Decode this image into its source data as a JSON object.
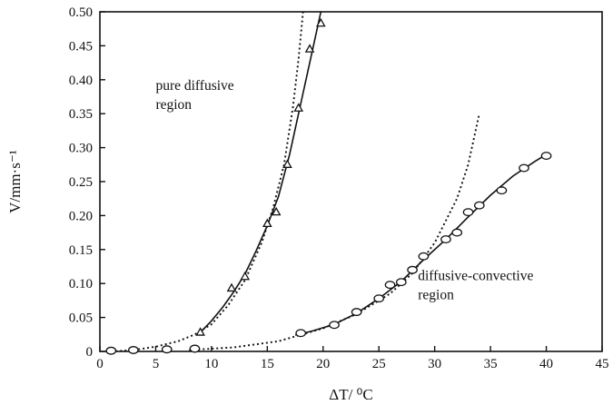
{
  "chart_data": {
    "type": "scatter",
    "title": "",
    "xlabel": "ΔT/ ⁰C",
    "ylabel": "V/mm·s⁻¹",
    "xlim": [
      0,
      45
    ],
    "ylim": [
      0,
      0.5
    ],
    "xticks": [
      "0",
      "5",
      "10",
      "15",
      "20",
      "25",
      "30",
      "35",
      "40",
      "45"
    ],
    "yticks": [
      "0",
      "0.05",
      "0.10",
      "0.15",
      "0.20",
      "0.25",
      "0.30",
      "0.35",
      "0.40",
      "0.45",
      "0.50"
    ],
    "grid": false,
    "legend": "none",
    "annotations": [
      {
        "id": "diffusive",
        "lines": [
          "pure diffusive",
          "region"
        ],
        "x": 5.0,
        "y": 0.385
      },
      {
        "id": "convective",
        "lines": [
          "diffusive-convective",
          "region"
        ],
        "x": 28.5,
        "y": 0.105
      }
    ],
    "series": [
      {
        "marker": "triangle",
        "points": [
          {
            "x": 9.0,
            "y": 0.028
          },
          {
            "x": 11.8,
            "y": 0.093
          },
          {
            "x": 13.0,
            "y": 0.11
          },
          {
            "x": 15.0,
            "y": 0.188
          },
          {
            "x": 15.8,
            "y": 0.205
          },
          {
            "x": 16.8,
            "y": 0.275
          },
          {
            "x": 17.8,
            "y": 0.358
          },
          {
            "x": 18.8,
            "y": 0.445
          },
          {
            "x": 19.8,
            "y": 0.483
          }
        ],
        "fit_solid": [
          [
            9.0,
            0.028
          ],
          [
            10.0,
            0.045
          ],
          [
            11.0,
            0.065
          ],
          [
            12.0,
            0.088
          ],
          [
            13.0,
            0.114
          ],
          [
            14.0,
            0.148
          ],
          [
            15.0,
            0.185
          ],
          [
            16.0,
            0.228
          ],
          [
            17.0,
            0.29
          ],
          [
            18.0,
            0.365
          ],
          [
            19.0,
            0.44
          ],
          [
            19.8,
            0.5
          ]
        ],
        "fit_dotted": [
          [
            1.0,
            0.0
          ],
          [
            3.0,
            0.002
          ],
          [
            5.0,
            0.007
          ],
          [
            7.0,
            0.015
          ],
          [
            8.5,
            0.025
          ],
          [
            10.0,
            0.04
          ],
          [
            11.5,
            0.068
          ],
          [
            13.0,
            0.105
          ],
          [
            14.5,
            0.16
          ],
          [
            15.5,
            0.21
          ],
          [
            16.5,
            0.275
          ],
          [
            17.3,
            0.36
          ],
          [
            17.8,
            0.43
          ],
          [
            18.2,
            0.5
          ]
        ]
      },
      {
        "marker": "circle",
        "points": [
          {
            "x": 1.0,
            "y": 0.001
          },
          {
            "x": 3.0,
            "y": 0.002
          },
          {
            "x": 6.0,
            "y": 0.003
          },
          {
            "x": 8.5,
            "y": 0.004
          },
          {
            "x": 18.0,
            "y": 0.027
          },
          {
            "x": 21.0,
            "y": 0.039
          },
          {
            "x": 23.0,
            "y": 0.058
          },
          {
            "x": 25.0,
            "y": 0.078
          },
          {
            "x": 26.0,
            "y": 0.098
          },
          {
            "x": 27.0,
            "y": 0.102
          },
          {
            "x": 28.0,
            "y": 0.12
          },
          {
            "x": 29.0,
            "y": 0.14
          },
          {
            "x": 31.0,
            "y": 0.165
          },
          {
            "x": 32.0,
            "y": 0.175
          },
          {
            "x": 33.0,
            "y": 0.205
          },
          {
            "x": 34.0,
            "y": 0.215
          },
          {
            "x": 36.0,
            "y": 0.237
          },
          {
            "x": 38.0,
            "y": 0.27
          },
          {
            "x": 40.0,
            "y": 0.288
          }
        ],
        "fit_solid": [
          [
            17.5,
            0.024
          ],
          [
            19.0,
            0.03
          ],
          [
            21.0,
            0.04
          ],
          [
            23.0,
            0.056
          ],
          [
            25.0,
            0.078
          ],
          [
            27.0,
            0.103
          ],
          [
            29.0,
            0.135
          ],
          [
            31.0,
            0.165
          ],
          [
            33.0,
            0.198
          ],
          [
            35.0,
            0.23
          ],
          [
            37.0,
            0.258
          ],
          [
            39.0,
            0.28
          ],
          [
            40.0,
            0.29
          ]
        ],
        "fit_dotted": [
          [
            8.0,
            0.002
          ],
          [
            12.0,
            0.006
          ],
          [
            16.0,
            0.015
          ],
          [
            20.0,
            0.034
          ],
          [
            23.0,
            0.055
          ],
          [
            26.0,
            0.085
          ],
          [
            28.0,
            0.115
          ],
          [
            30.0,
            0.16
          ],
          [
            32.0,
            0.225
          ],
          [
            33.0,
            0.275
          ],
          [
            34.0,
            0.35
          ]
        ]
      }
    ]
  }
}
